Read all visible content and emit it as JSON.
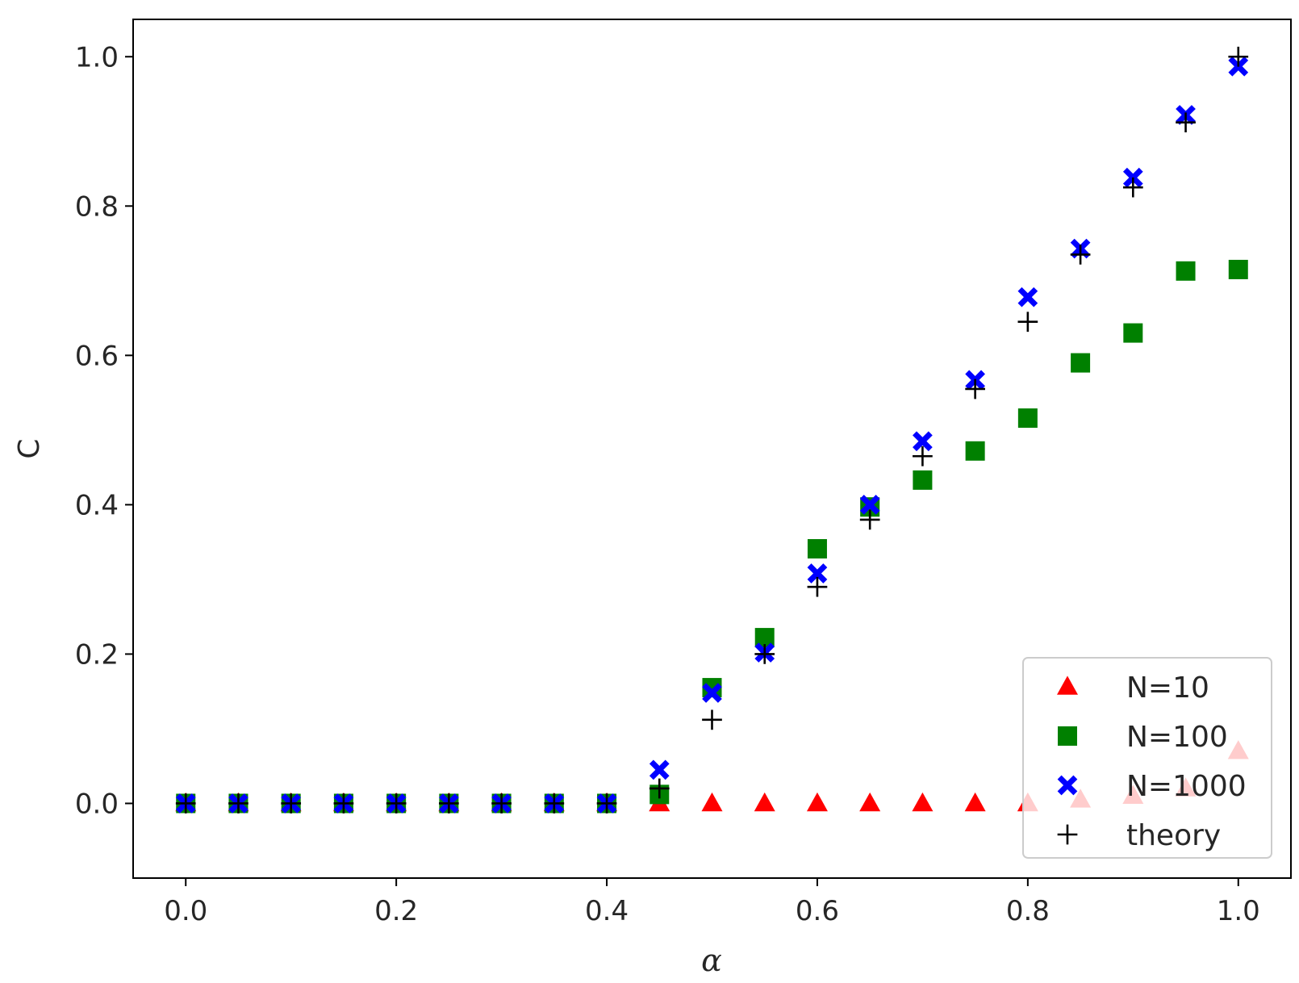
{
  "chart_data": {
    "type": "scatter",
    "title": "",
    "xlabel": "α",
    "ylabel": "C",
    "xlim": [
      -0.05,
      1.05
    ],
    "ylim": [
      -0.1,
      1.05
    ],
    "xticks": [
      0.0,
      0.2,
      0.4,
      0.6,
      0.8,
      1.0
    ],
    "yticks": [
      0.0,
      0.2,
      0.4,
      0.6,
      0.8,
      1.0
    ],
    "xtick_labels": [
      "0.0",
      "0.2",
      "0.4",
      "0.6",
      "0.8",
      "1.0"
    ],
    "ytick_labels": [
      "0.0",
      "0.2",
      "0.4",
      "0.6",
      "0.8",
      "1.0"
    ],
    "grid": false,
    "legend_position": "bottom-right",
    "x": [
      0.0,
      0.05,
      0.1,
      0.15,
      0.2,
      0.25,
      0.3,
      0.35,
      0.4,
      0.45,
      0.5,
      0.55,
      0.6,
      0.65,
      0.7,
      0.75,
      0.8,
      0.85,
      0.9,
      0.95,
      1.0
    ],
    "series": [
      {
        "name": "N=10",
        "marker": "triangle",
        "color": "#ff0000",
        "values": [
          0,
          0,
          0,
          0,
          0,
          0,
          0,
          0,
          0,
          0,
          0,
          0,
          0,
          0,
          0,
          0,
          0,
          0.005,
          0.01,
          0.02,
          0.07
        ]
      },
      {
        "name": "N=100",
        "marker": "square",
        "color": "#008000",
        "values": [
          0,
          0,
          0,
          0,
          0,
          0,
          0,
          0,
          0,
          0.012,
          0.155,
          0.222,
          0.341,
          0.397,
          0.433,
          0.472,
          0.516,
          0.59,
          0.63,
          0.713,
          0.715
        ]
      },
      {
        "name": "N=1000",
        "marker": "x-filled",
        "color": "#0000ff",
        "values": [
          0,
          0,
          0,
          0,
          0,
          0,
          0,
          0,
          0,
          0.045,
          0.148,
          0.202,
          0.308,
          0.4,
          0.485,
          0.567,
          0.678,
          0.743,
          0.838,
          0.922,
          0.987
        ]
      },
      {
        "name": "theory",
        "marker": "plus",
        "color": "#000000",
        "values": [
          0,
          0,
          0,
          0,
          0,
          0,
          0,
          0,
          0,
          0.02,
          0.112,
          0.2,
          0.29,
          0.38,
          0.465,
          0.555,
          0.645,
          0.735,
          0.825,
          0.912,
          1.0
        ]
      }
    ]
  }
}
